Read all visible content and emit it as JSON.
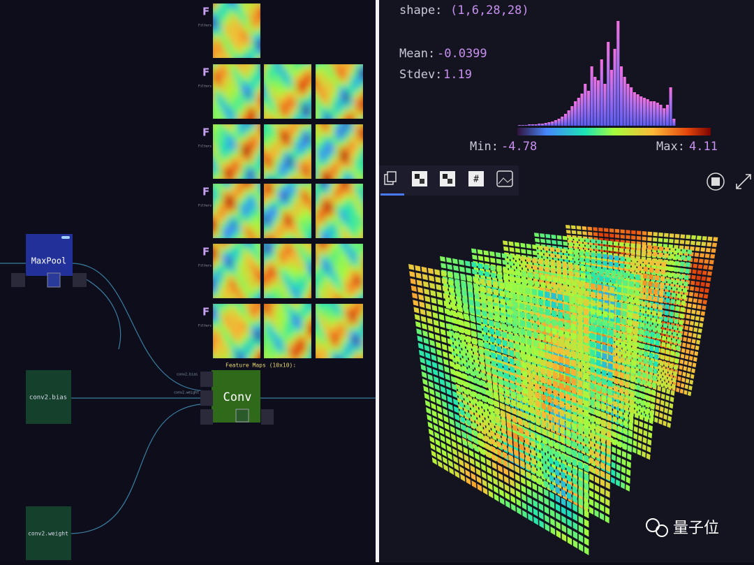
{
  "left_panel": {
    "filters_label": "F",
    "filters_caption": "Filters",
    "feature_maps_title": "Feature Maps (10x10):",
    "nodes": [
      {
        "label": "MaxPool"
      },
      {
        "label": "conv2.bias"
      },
      {
        "label": "conv2.weight"
      },
      {
        "label": "Conv"
      }
    ],
    "port_labels": [
      "conv2.bias",
      "conv2.weight"
    ]
  },
  "right_panel": {
    "shape_label": "shape:",
    "shape_value": "(1,6,28,28)",
    "mean_label": "Mean:",
    "mean_value": "-0.0399",
    "stdev_label": "Stdev:",
    "stdev_value": "1.19",
    "min_label": "Min:",
    "min_value": "-4.78",
    "max_label": "Max:",
    "max_value": "4.11",
    "histogram": {
      "counts": [
        1,
        1,
        1,
        2,
        2,
        2,
        3,
        3,
        4,
        5,
        6,
        8,
        10,
        13,
        17,
        22,
        28,
        35,
        40,
        46,
        60,
        50,
        85,
        70,
        65,
        95,
        60,
        120,
        80,
        110,
        150,
        85,
        70,
        60,
        55,
        48,
        45,
        42,
        40,
        38,
        35,
        35,
        33,
        30,
        25,
        30,
        55,
        10
      ]
    },
    "toolbar_hash": "#"
  },
  "watermark": "量子位"
}
